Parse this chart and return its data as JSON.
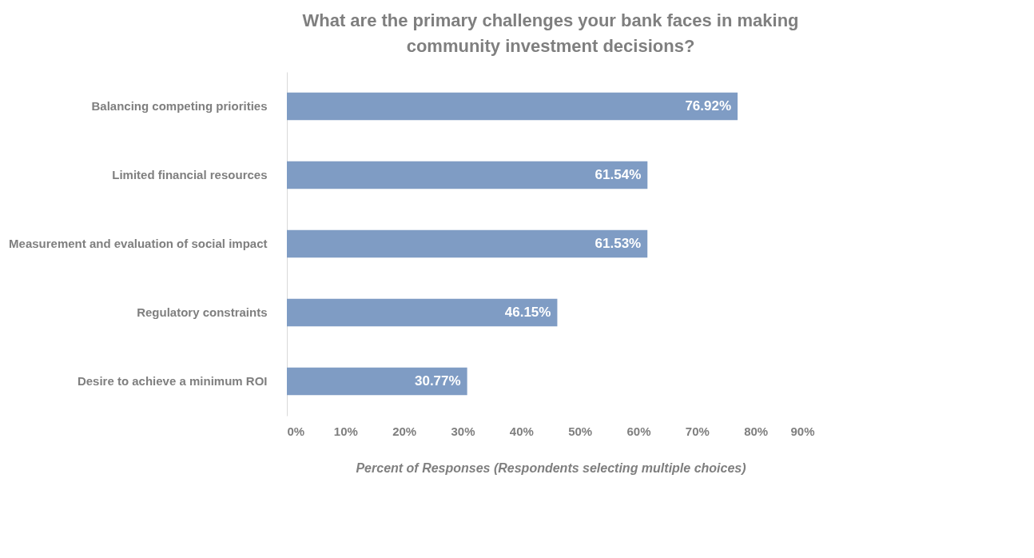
{
  "chart_data": {
    "type": "bar",
    "orientation": "horizontal",
    "title": "What are the primary challenges your bank faces in making community investment decisions?",
    "xlabel": "Percent of Responses (Respondents selecting multiple choices)",
    "categories": [
      "Balancing competing priorities",
      "Limited financial resources",
      "Measurement and evaluation of social impact",
      "Regulatory constraints",
      "Desire to achieve a minimum ROI"
    ],
    "values": [
      76.92,
      61.54,
      61.53,
      46.15,
      30.77
    ],
    "value_labels": [
      "76.92%",
      "61.54%",
      "61.53%",
      "46.15%",
      "30.77%"
    ],
    "color": "#7f9cc4",
    "xlim": [
      0,
      90
    ],
    "xticks": [
      {
        "value": 0,
        "label": "0%"
      },
      {
        "value": 10,
        "label": "10%"
      },
      {
        "value": 20,
        "label": "20%"
      },
      {
        "value": 30,
        "label": "30%"
      },
      {
        "value": 40,
        "label": "40%"
      },
      {
        "value": 50,
        "label": "50%"
      },
      {
        "value": 60,
        "label": "60%"
      },
      {
        "value": 70,
        "label": "70%"
      },
      {
        "value": 80,
        "label": "80%"
      },
      {
        "value": 90,
        "label": "90%"
      }
    ],
    "grid": false
  }
}
